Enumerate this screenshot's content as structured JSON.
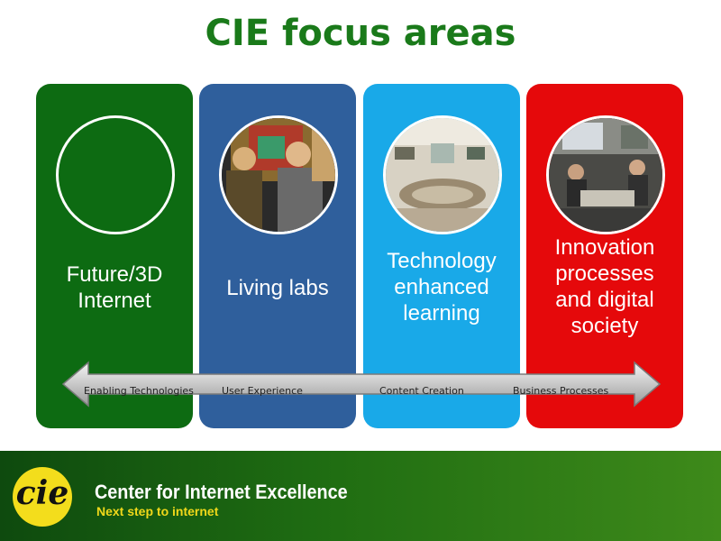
{
  "slide": {
    "title": "CIE focus areas"
  },
  "focus_areas": [
    {
      "label": "Future/3D\nInternet",
      "color": "#0d6b12"
    },
    {
      "label": "Living labs",
      "color": "#2f5f9c"
    },
    {
      "label": "Technology\nenhanced\nlearning",
      "color": "#19a9e8"
    },
    {
      "label": "Innovation\nprocesses\nand digital\nsociety",
      "color": "#e5090b"
    }
  ],
  "arrow": {
    "labels": [
      "Enabling Technologies",
      "User Experience",
      "Content Creation",
      "Business Processes"
    ]
  },
  "footer": {
    "logo_text": "cie",
    "organization": "Center for Internet Excellence",
    "tagline": "Next step to internet",
    "tagline_color": "#f0d81a"
  }
}
